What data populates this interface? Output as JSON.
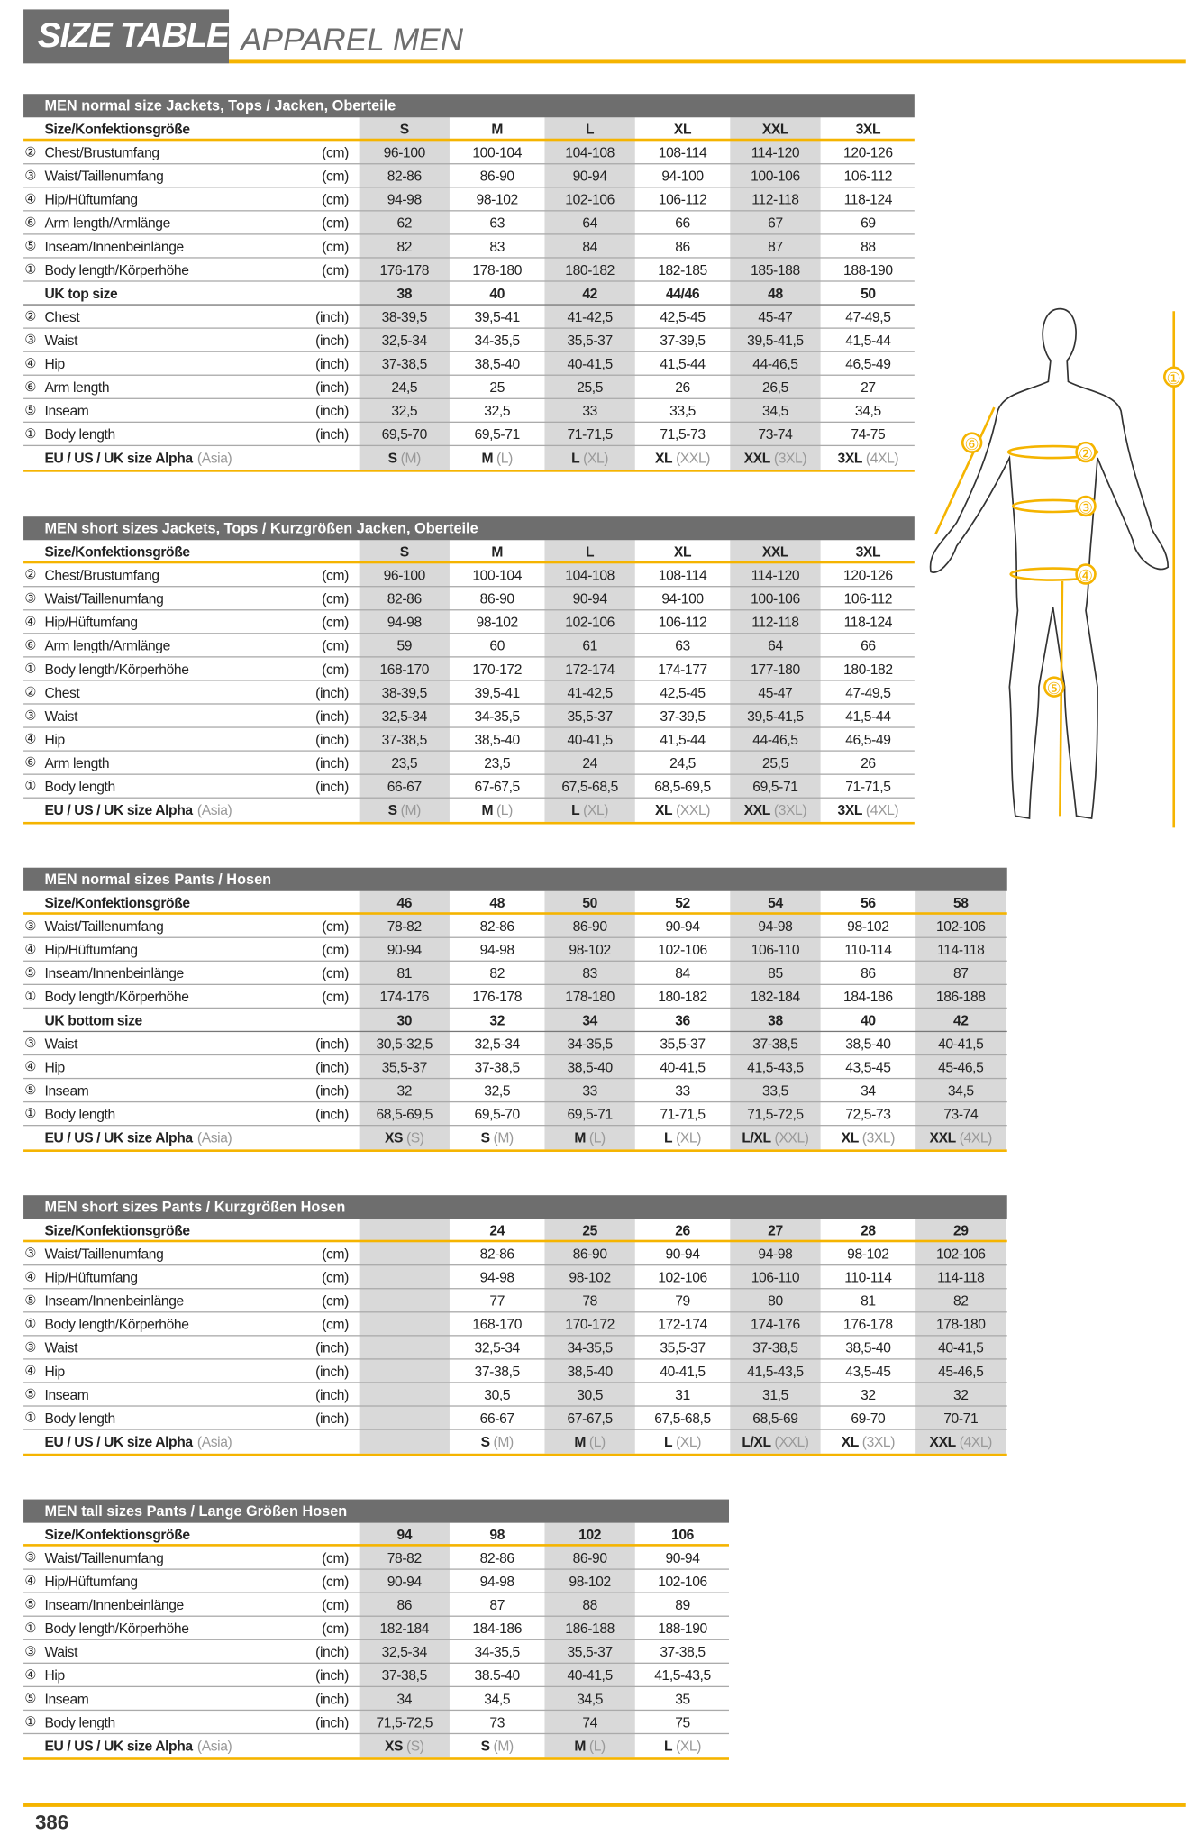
{
  "header": {
    "title": "SIZE TABLE",
    "subtitle": "APPAREL MEN"
  },
  "figure": {
    "labels": [
      "①",
      "②",
      "③",
      "④",
      "⑤",
      "⑥"
    ]
  },
  "tables": [
    {
      "title": "MEN normal size Jackets, Tops / Jacken, Oberteile",
      "size_label": "Size/Konfektionsgröße",
      "sizes": [
        "S",
        "M",
        "L",
        "XL",
        "XXL",
        "3XL"
      ],
      "rows": [
        {
          "marker": "②",
          "label": "Chest/Brustumfang",
          "unit": "(cm)",
          "values": [
            "96-100",
            "100-104",
            "104-108",
            "108-114",
            "114-120",
            "120-126"
          ]
        },
        {
          "marker": "③",
          "label": "Waist/Taillenumfang",
          "unit": "(cm)",
          "values": [
            "82-86",
            "86-90",
            "90-94",
            "94-100",
            "100-106",
            "106-112"
          ]
        },
        {
          "marker": "④",
          "label": "Hip/Hüftumfang",
          "unit": "(cm)",
          "values": [
            "94-98",
            "98-102",
            "102-106",
            "106-112",
            "112-118",
            "118-124"
          ]
        },
        {
          "marker": "⑥",
          "label": "Arm length/Armlänge",
          "unit": "(cm)",
          "values": [
            "62",
            "63",
            "64",
            "66",
            "67",
            "69"
          ]
        },
        {
          "marker": "⑤",
          "label": "Inseam/Innenbeinlänge",
          "unit": "(cm)",
          "values": [
            "82",
            "83",
            "84",
            "86",
            "87",
            "88"
          ]
        },
        {
          "marker": "①",
          "label": "Body length/Körperhöhe",
          "unit": "(cm)",
          "values": [
            "176-178",
            "178-180",
            "180-182",
            "182-185",
            "185-188",
            "188-190"
          ]
        },
        {
          "label": "UK top size",
          "values": [
            "38",
            "40",
            "42",
            "44/46",
            "48",
            "50"
          ]
        },
        {
          "marker": "②",
          "label": "Chest",
          "unit": "(inch)",
          "values": [
            "38-39,5",
            "39,5-41",
            "41-42,5",
            "42,5-45",
            "45-47",
            "47-49,5"
          ]
        },
        {
          "marker": "③",
          "label": "Waist",
          "unit": "(inch)",
          "values": [
            "32,5-34",
            "34-35,5",
            "35,5-37",
            "37-39,5",
            "39,5-41,5",
            "41,5-44"
          ]
        },
        {
          "marker": "④",
          "label": "Hip",
          "unit": "(inch)",
          "values": [
            "37-38,5",
            "38,5-40",
            "40-41,5",
            "41,5-44",
            "44-46,5",
            "46,5-49"
          ]
        },
        {
          "marker": "⑥",
          "label": "Arm length",
          "unit": "(inch)",
          "values": [
            "24,5",
            "25",
            "25,5",
            "26",
            "26,5",
            "27"
          ]
        },
        {
          "marker": "⑤",
          "label": "Inseam",
          "unit": "(inch)",
          "values": [
            "32,5",
            "32,5",
            "33",
            "33,5",
            "34,5",
            "34,5"
          ]
        },
        {
          "marker": "①",
          "label": "Body length",
          "unit": "(inch)",
          "values": [
            "69,5-70",
            "69,5-71",
            "71-71,5",
            "71,5-73",
            "73-74",
            "74-75"
          ]
        }
      ],
      "alpha": {
        "label": "EU / US / UK size Alpha",
        "note": "(Asia)",
        "values": [
          {
            "size": "S",
            "asia": "(M)"
          },
          {
            "size": "M",
            "asia": "(L)"
          },
          {
            "size": "L",
            "asia": "(XL)"
          },
          {
            "size": "XL",
            "asia": "(XXL)"
          },
          {
            "size": "XXL",
            "asia": "(3XL)"
          },
          {
            "size": "3XL",
            "asia": "(4XL)"
          }
        ]
      }
    },
    {
      "title": "MEN short sizes Jackets, Tops / Kurzgrößen Jacken, Oberteile",
      "size_label": "Size/Konfektionsgröße",
      "sizes": [
        "S",
        "M",
        "L",
        "XL",
        "XXL",
        "3XL"
      ],
      "rows": [
        {
          "marker": "②",
          "label": "Chest/Brustumfang",
          "unit": "(cm)",
          "values": [
            "96-100",
            "100-104",
            "104-108",
            "108-114",
            "114-120",
            "120-126"
          ]
        },
        {
          "marker": "③",
          "label": "Waist/Taillenumfang",
          "unit": "(cm)",
          "values": [
            "82-86",
            "86-90",
            "90-94",
            "94-100",
            "100-106",
            "106-112"
          ]
        },
        {
          "marker": "④",
          "label": "Hip/Hüftumfang",
          "unit": "(cm)",
          "values": [
            "94-98",
            "98-102",
            "102-106",
            "106-112",
            "112-118",
            "118-124"
          ]
        },
        {
          "marker": "⑥",
          "label": "Arm length/Armlänge",
          "unit": "(cm)",
          "values": [
            "59",
            "60",
            "61",
            "63",
            "64",
            "66"
          ]
        },
        {
          "marker": "①",
          "label": "Body length/Körperhöhe",
          "unit": "(cm)",
          "values": [
            "168-170",
            "170-172",
            "172-174",
            "174-177",
            "177-180",
            "180-182"
          ]
        },
        {
          "marker": "②",
          "label": "Chest",
          "unit": "(inch)",
          "values": [
            "38-39,5",
            "39,5-41",
            "41-42,5",
            "42,5-45",
            "45-47",
            "47-49,5"
          ]
        },
        {
          "marker": "③",
          "label": "Waist",
          "unit": "(inch)",
          "values": [
            "32,5-34",
            "34-35,5",
            "35,5-37",
            "37-39,5",
            "39,5-41,5",
            "41,5-44"
          ]
        },
        {
          "marker": "④",
          "label": "Hip",
          "unit": "(inch)",
          "values": [
            "37-38,5",
            "38,5-40",
            "40-41,5",
            "41,5-44",
            "44-46,5",
            "46,5-49"
          ]
        },
        {
          "marker": "⑥",
          "label": "Arm length",
          "unit": "(inch)",
          "values": [
            "23,5",
            "23,5",
            "24",
            "24,5",
            "25,5",
            "26"
          ]
        },
        {
          "marker": "①",
          "label": "Body length",
          "unit": "(inch)",
          "values": [
            "66-67",
            "67-67,5",
            "67,5-68,5",
            "68,5-69,5",
            "69,5-71",
            "71-71,5"
          ]
        }
      ],
      "alpha": {
        "label": "EU / US / UK size Alpha",
        "note": "(Asia)",
        "values": [
          {
            "size": "S",
            "asia": "(M)"
          },
          {
            "size": "M",
            "asia": "(L)"
          },
          {
            "size": "L",
            "asia": "(XL)"
          },
          {
            "size": "XL",
            "asia": "(XXL)"
          },
          {
            "size": "XXL",
            "asia": "(3XL)"
          },
          {
            "size": "3XL",
            "asia": "(4XL)"
          }
        ]
      }
    },
    {
      "title": "MEN normal sizes Pants / Hosen",
      "size_label": "Size/Konfektionsgröße",
      "sizes": [
        "46",
        "48",
        "50",
        "52",
        "54",
        "56",
        "58"
      ],
      "rows": [
        {
          "marker": "③",
          "label": "Waist/Taillenumfang",
          "unit": "(cm)",
          "values": [
            "78-82",
            "82-86",
            "86-90",
            "90-94",
            "94-98",
            "98-102",
            "102-106"
          ]
        },
        {
          "marker": "④",
          "label": "Hip/Hüftumfang",
          "unit": "(cm)",
          "values": [
            "90-94",
            "94-98",
            "98-102",
            "102-106",
            "106-110",
            "110-114",
            "114-118"
          ]
        },
        {
          "marker": "⑤",
          "label": "Inseam/Innenbeinlänge",
          "unit": "(cm)",
          "values": [
            "81",
            "82",
            "83",
            "84",
            "85",
            "86",
            "87"
          ]
        },
        {
          "marker": "①",
          "label": "Body length/Körperhöhe",
          "unit": "(cm)",
          "values": [
            "174-176",
            "176-178",
            "178-180",
            "180-182",
            "182-184",
            "184-186",
            "186-188"
          ]
        },
        {
          "label": "UK bottom size",
          "values": [
            "30",
            "32",
            "34",
            "36",
            "38",
            "40",
            "42"
          ]
        },
        {
          "marker": "③",
          "label": "Waist",
          "unit": "(inch)",
          "values": [
            "30,5-32,5",
            "32,5-34",
            "34-35,5",
            "35,5-37",
            "37-38,5",
            "38,5-40",
            "40-41,5"
          ]
        },
        {
          "marker": "④",
          "label": "Hip",
          "unit": "(inch)",
          "values": [
            "35,5-37",
            "37-38,5",
            "38,5-40",
            "40-41,5",
            "41,5-43,5",
            "43,5-45",
            "45-46,5"
          ]
        },
        {
          "marker": "⑤",
          "label": "Inseam",
          "unit": "(inch)",
          "values": [
            "32",
            "32,5",
            "33",
            "33",
            "33,5",
            "34",
            "34,5"
          ]
        },
        {
          "marker": "①",
          "label": "Body length",
          "unit": "(inch)",
          "values": [
            "68,5-69,5",
            "69,5-70",
            "69,5-71",
            "71-71,5",
            "71,5-72,5",
            "72,5-73",
            "73-74"
          ]
        }
      ],
      "alpha": {
        "label": "EU / US / UK size Alpha",
        "note": "(Asia)",
        "values": [
          {
            "size": "XS",
            "asia": "(S)"
          },
          {
            "size": "S",
            "asia": "(M)"
          },
          {
            "size": "M",
            "asia": "(L)"
          },
          {
            "size": "L",
            "asia": "(XL)"
          },
          {
            "size": "L/XL",
            "asia": "(XXL)"
          },
          {
            "size": "XL",
            "asia": "(3XL)"
          },
          {
            "size": "XXL",
            "asia": "(4XL)"
          }
        ]
      }
    },
    {
      "title": "MEN short sizes Pants / Kurzgrößen Hosen",
      "size_label": "Size/Konfektionsgröße",
      "sizes": [
        null,
        "24",
        "25",
        "26",
        "27",
        "28",
        "29"
      ],
      "rows": [
        {
          "marker": "③",
          "label": "Waist/Taillenumfang",
          "unit": "(cm)",
          "values": [
            null,
            "82-86",
            "86-90",
            "90-94",
            "94-98",
            "98-102",
            "102-106"
          ]
        },
        {
          "marker": "④",
          "label": "Hip/Hüftumfang",
          "unit": "(cm)",
          "values": [
            null,
            "94-98",
            "98-102",
            "102-106",
            "106-110",
            "110-114",
            "114-118"
          ]
        },
        {
          "marker": "⑤",
          "label": "Inseam/Innenbeinlänge",
          "unit": "(cm)",
          "values": [
            null,
            "77",
            "78",
            "79",
            "80",
            "81",
            "82"
          ]
        },
        {
          "marker": "①",
          "label": "Body length/Körperhöhe",
          "unit": "(cm)",
          "values": [
            null,
            "168-170",
            "170-172",
            "172-174",
            "174-176",
            "176-178",
            "178-180"
          ]
        },
        {
          "marker": "③",
          "label": "Waist",
          "unit": "(inch)",
          "values": [
            null,
            "32,5-34",
            "34-35,5",
            "35,5-37",
            "37-38,5",
            "38,5-40",
            "40-41,5"
          ]
        },
        {
          "marker": "④",
          "label": "Hip",
          "unit": "(inch)",
          "values": [
            null,
            "37-38,5",
            "38,5-40",
            "40-41,5",
            "41,5-43,5",
            "43,5-45",
            "45-46,5"
          ]
        },
        {
          "marker": "⑤",
          "label": "Inseam",
          "unit": "(inch)",
          "values": [
            null,
            "30,5",
            "30,5",
            "31",
            "31,5",
            "32",
            "32"
          ]
        },
        {
          "marker": "①",
          "label": "Body length",
          "unit": "(inch)",
          "values": [
            null,
            "66-67",
            "67-67,5",
            "67,5-68,5",
            "68,5-69",
            "69-70",
            "70-71"
          ]
        }
      ],
      "alpha": {
        "label": "EU / US / UK size Alpha",
        "note": "(Asia)",
        "values": [
          null,
          {
            "size": "S",
            "asia": "(M)"
          },
          {
            "size": "M",
            "asia": "(L)"
          },
          {
            "size": "L",
            "asia": "(XL)"
          },
          {
            "size": "L/XL",
            "asia": "(XXL)"
          },
          {
            "size": "XL",
            "asia": "(3XL)"
          },
          {
            "size": "XXL",
            "asia": "(4XL)"
          }
        ]
      }
    },
    {
      "title": "MEN tall sizes Pants / Lange Größen Hosen",
      "size_label": "Size/Konfektionsgröße",
      "sizes": [
        "94",
        "98",
        "102",
        "106"
      ],
      "rows": [
        {
          "marker": "③",
          "label": "Waist/Taillenumfang",
          "unit": "(cm)",
          "values": [
            "78-82",
            "82-86",
            "86-90",
            "90-94"
          ]
        },
        {
          "marker": "④",
          "label": "Hip/Hüftumfang",
          "unit": "(cm)",
          "values": [
            "90-94",
            "94-98",
            "98-102",
            "102-106"
          ]
        },
        {
          "marker": "⑤",
          "label": "Inseam/Innenbeinlänge",
          "unit": "(cm)",
          "values": [
            "86",
            "87",
            "88",
            "89"
          ]
        },
        {
          "marker": "①",
          "label": "Body length/Körperhöhe",
          "unit": "(cm)",
          "values": [
            "182-184",
            "184-186",
            "186-188",
            "188-190"
          ]
        },
        {
          "marker": "③",
          "label": "Waist",
          "unit": "(inch)",
          "values": [
            "32,5-34",
            "34-35,5",
            "35,5-37",
            "37-38,5"
          ]
        },
        {
          "marker": "④",
          "label": "Hip",
          "unit": "(inch)",
          "values": [
            "37-38,5",
            "38.5-40",
            "40-41,5",
            "41,5-43,5"
          ]
        },
        {
          "marker": "⑤",
          "label": "Inseam",
          "unit": "(inch)",
          "values": [
            "34",
            "34,5",
            "34,5",
            "35"
          ]
        },
        {
          "marker": "①",
          "label": "Body length",
          "unit": "(inch)",
          "values": [
            "71,5-72,5",
            "73",
            "74",
            "75"
          ]
        }
      ],
      "alpha": {
        "label": "EU / US / UK size Alpha",
        "note": "(Asia)",
        "values": [
          {
            "size": "XS",
            "asia": "(S)"
          },
          {
            "size": "S",
            "asia": "(M)"
          },
          {
            "size": "M",
            "asia": "(L)"
          },
          {
            "size": "L",
            "asia": "(XL)"
          }
        ]
      }
    }
  ],
  "footer": {
    "page_number": "386"
  }
}
